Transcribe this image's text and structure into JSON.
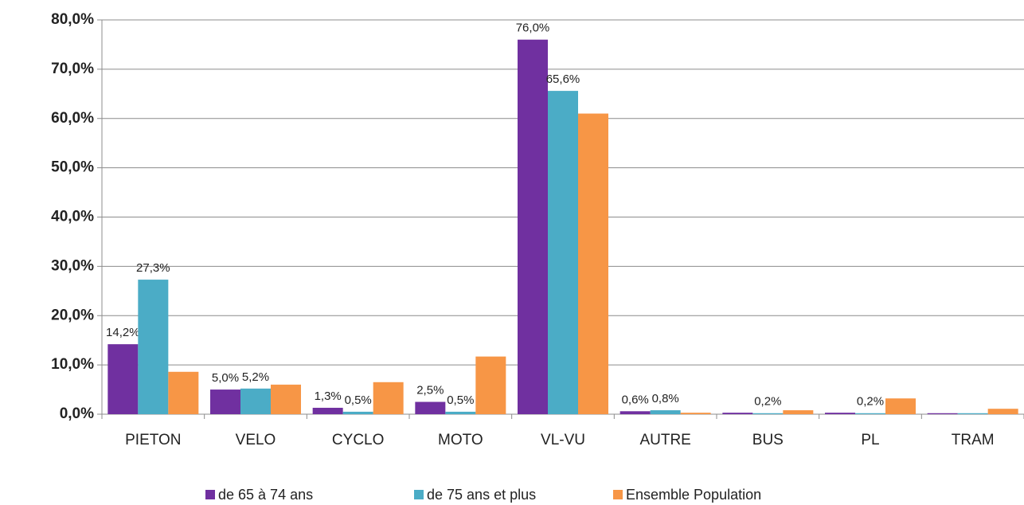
{
  "chart_data": {
    "type": "bar",
    "categories": [
      "PIETON",
      "VELO",
      "CYCLO",
      "MOTO",
      "VL-VU",
      "AUTRE",
      "BUS",
      "PL",
      "TRAM"
    ],
    "series": [
      {
        "name": "de 65 à 74 ans",
        "color": "#7030a0",
        "values": [
          14.2,
          5.0,
          1.3,
          2.5,
          76.0,
          0.6,
          0.3,
          0.3,
          0.2
        ],
        "value_labels": [
          "14,2%",
          "5,0%",
          "1,3%",
          "2,5%",
          "76,0%",
          "0,6%",
          null,
          null,
          null
        ]
      },
      {
        "name": "de 75 ans et plus",
        "color": "#4bacc6",
        "values": [
          27.3,
          5.2,
          0.5,
          0.5,
          65.6,
          0.8,
          0.2,
          0.2,
          0.2
        ],
        "value_labels": [
          "27,3%",
          "5,2%",
          "0,5%",
          "0,5%",
          "65,6%",
          "0,8%",
          "0,2%",
          "0,2%",
          null
        ]
      },
      {
        "name": "Ensemble Population",
        "color": "#f79646",
        "values": [
          8.6,
          6.0,
          6.5,
          11.7,
          61.0,
          0.3,
          0.8,
          3.2,
          1.1
        ]
      }
    ],
    "ylim": [
      0,
      80
    ],
    "yticks": [
      {
        "value": 0,
        "label": "0,0%"
      },
      {
        "value": 10,
        "label": "10,0%"
      },
      {
        "value": 20,
        "label": "20,0%"
      },
      {
        "value": 30,
        "label": "30,0%"
      },
      {
        "value": 40,
        "label": "40,0%"
      },
      {
        "value": 50,
        "label": "50,0%"
      },
      {
        "value": 60,
        "label": "60,0%"
      },
      {
        "value": 70,
        "label": "70,0%"
      },
      {
        "value": 80,
        "label": "80,0%"
      }
    ],
    "grid": true,
    "legend": "bottom"
  }
}
